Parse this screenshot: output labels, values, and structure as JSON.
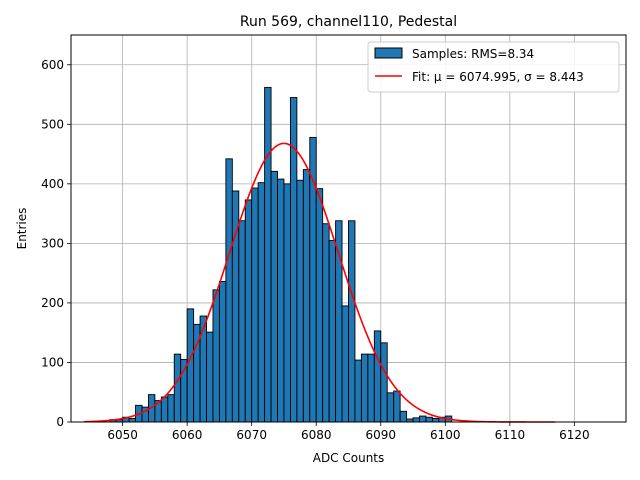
{
  "chart_data": {
    "type": "bar",
    "title": "Run 569, channel110, Pedestal",
    "xlabel": "ADC Counts",
    "ylabel": "Entries",
    "xlim": [
      6042,
      6128
    ],
    "ylim": [
      0,
      650
    ],
    "xticks": [
      6050,
      6060,
      6070,
      6080,
      6090,
      6100,
      6110,
      6120
    ],
    "yticks": [
      0,
      100,
      200,
      300,
      400,
      500,
      600
    ],
    "grid": true,
    "legend_position": "top-right",
    "bin_width": 1,
    "series": [
      {
        "name": "Samples: RMS=8.34",
        "kind": "histogram",
        "color": "#1f77b4",
        "edge_color": "#000000",
        "bins": [
          6048,
          6049,
          6050,
          6051,
          6052,
          6053,
          6054,
          6055,
          6056,
          6057,
          6058,
          6059,
          6060,
          6061,
          6062,
          6063,
          6064,
          6065,
          6066,
          6067,
          6068,
          6069,
          6070,
          6071,
          6072,
          6073,
          6074,
          6075,
          6076,
          6077,
          6078,
          6079,
          6080,
          6081,
          6082,
          6083,
          6084,
          6085,
          6086,
          6087,
          6088,
          6089,
          6090,
          6091,
          6092,
          6093,
          6094,
          6095,
          6096,
          6097,
          6098,
          6099,
          6100
        ],
        "values": [
          4,
          4,
          8,
          6,
          28,
          25,
          46,
          36,
          42,
          46,
          114,
          105,
          190,
          164,
          178,
          151,
          222,
          236,
          442,
          388,
          338,
          373,
          393,
          402,
          562,
          421,
          408,
          400,
          545,
          406,
          424,
          478,
          392,
          333,
          305,
          338,
          195,
          338,
          104,
          114,
          114,
          153,
          133,
          49,
          52,
          18,
          5,
          7,
          10,
          8,
          6,
          8,
          10
        ]
      },
      {
        "name": "Fit: μ = 6074.995, σ = 8.443",
        "kind": "gaussian",
        "color": "#ff0000",
        "mu": 6074.995,
        "sigma": 8.443,
        "amplitude": 468,
        "x_range": [
          6044,
          6117
        ]
      }
    ]
  }
}
